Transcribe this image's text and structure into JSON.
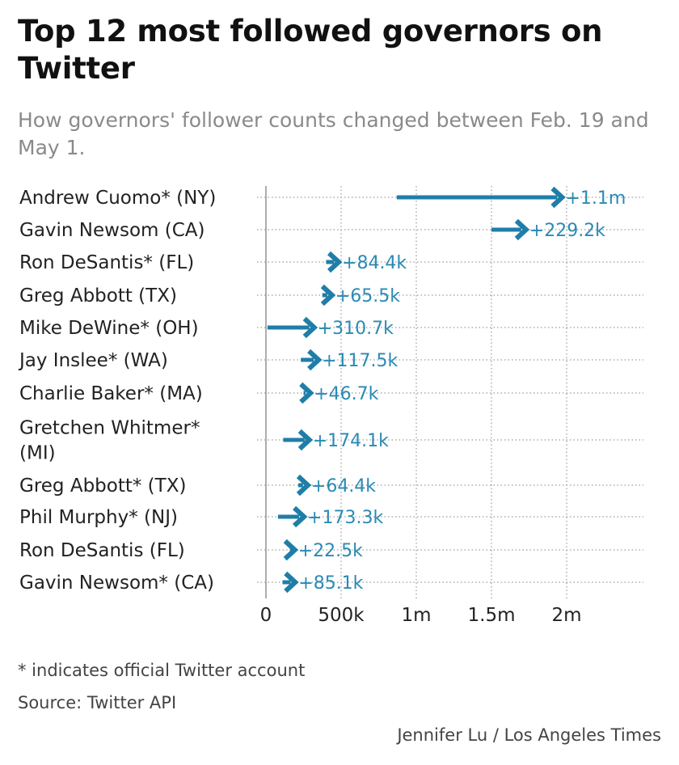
{
  "title": "Top 12 most followed governors on Twitter",
  "subtitle": "How governors' follower counts changed between Feb. 19 and May 1.",
  "footnote": "* indicates official Twitter account",
  "source": "Source: Twitter API",
  "credit": "Jennifer Lu / Los Angeles Times",
  "colors": {
    "arrow": "#1f7ea8",
    "value_label": "#2a8ab5",
    "gridline": "#9a9a9a",
    "axis": "#9a9a9a"
  },
  "chart_data": {
    "type": "arrow",
    "x_axis": {
      "min": 0,
      "max": 2500000,
      "ticks": [
        0,
        500000,
        1000000,
        1500000,
        2000000
      ],
      "tick_labels": [
        "0",
        "500k",
        "1m",
        "1.5m",
        "2m"
      ]
    },
    "grid": true,
    "rows": [
      {
        "name": "Andrew Cuomo* (NY)",
        "lines": [
          "Andrew Cuomo* (NY)"
        ],
        "start": 870000,
        "end": 1970000,
        "change_label": "+1.1m"
      },
      {
        "name": "Gavin Newsom (CA)",
        "lines": [
          "Gavin Newsom (CA)"
        ],
        "start": 1500000,
        "end": 1730000,
        "change_label": "+229.2k"
      },
      {
        "name": "Ron DeSantis* (FL)",
        "lines": [
          "Ron DeSantis* (FL)"
        ],
        "start": 400000,
        "end": 484000,
        "change_label": "+84.4k"
      },
      {
        "name": "Greg Abbott (TX)",
        "lines": [
          "Greg Abbott (TX)"
        ],
        "start": 375000,
        "end": 440000,
        "change_label": "+65.5k"
      },
      {
        "name": "Mike DeWine* (OH)",
        "lines": [
          "Mike DeWine* (OH)"
        ],
        "start": 10000,
        "end": 321000,
        "change_label": "+310.7k"
      },
      {
        "name": "Jay Inslee* (WA)",
        "lines": [
          "Jay Inslee* (WA)"
        ],
        "start": 232000,
        "end": 350000,
        "change_label": "+117.5k"
      },
      {
        "name": "Charlie Baker* (MA)",
        "lines": [
          "Charlie Baker* (MA)"
        ],
        "start": 250000,
        "end": 297000,
        "change_label": "+46.7k"
      },
      {
        "name": "Gretchen Whitmer* (MI)",
        "lines": [
          "Gretchen Whitmer*",
          "(MI)"
        ],
        "start": 115000,
        "end": 289000,
        "change_label": "+174.1k"
      },
      {
        "name": "Greg Abbott* (TX)",
        "lines": [
          "Greg Abbott* (TX)"
        ],
        "start": 215000,
        "end": 279000,
        "change_label": "+64.4k"
      },
      {
        "name": "Phil Murphy* (NJ)",
        "lines": [
          "Phil Murphy* (NJ)"
        ],
        "start": 80000,
        "end": 253000,
        "change_label": "+173.3k"
      },
      {
        "name": "Ron DeSantis (FL)",
        "lines": [
          "Ron DeSantis (FL)"
        ],
        "start": 170000,
        "end": 192000,
        "change_label": "+22.5k"
      },
      {
        "name": "Gavin Newsom* (CA)",
        "lines": [
          "Gavin Newsom* (CA)"
        ],
        "start": 110000,
        "end": 195000,
        "change_label": "+85.1k"
      }
    ]
  }
}
